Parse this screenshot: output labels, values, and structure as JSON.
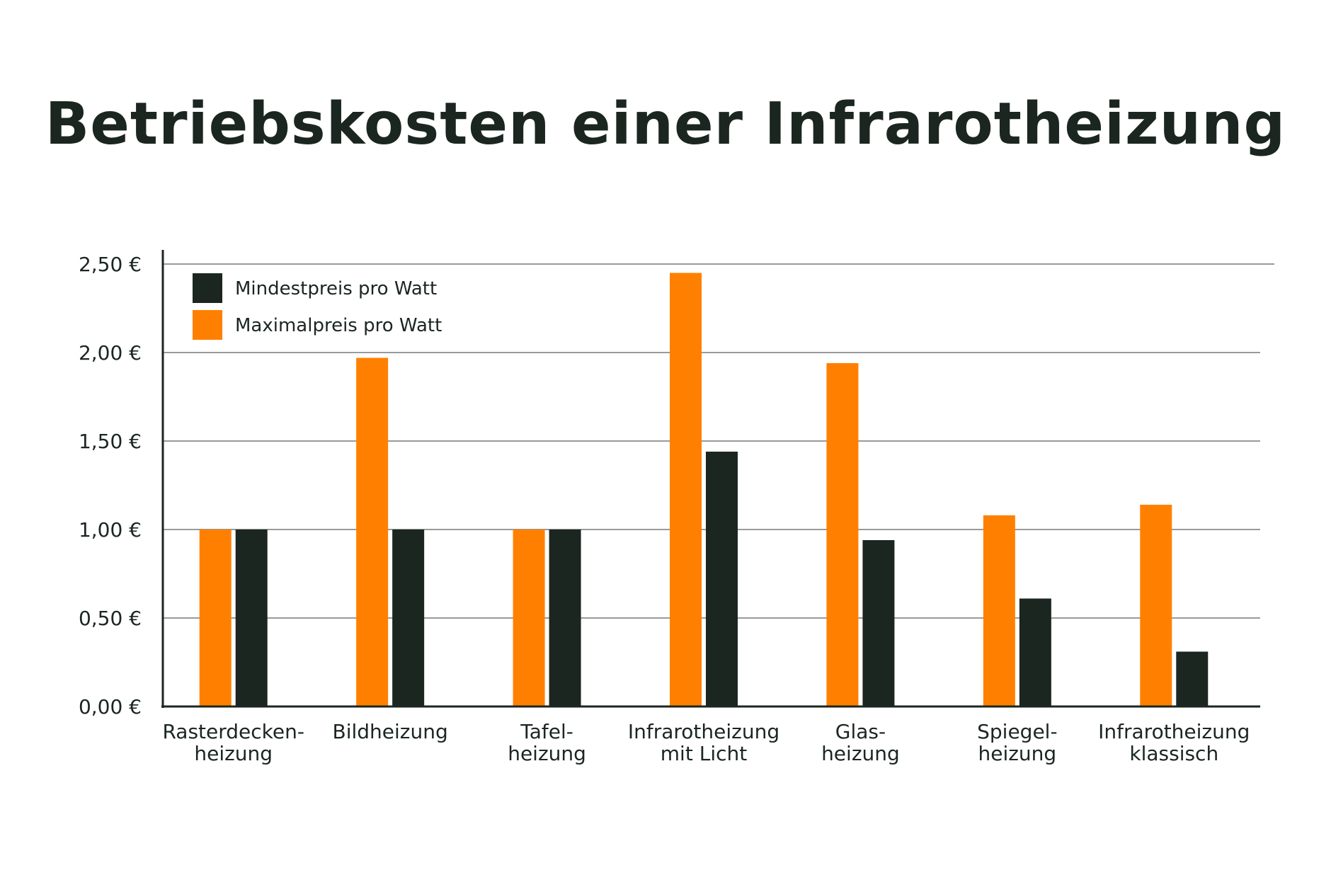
{
  "chart_data": {
    "type": "bar",
    "title": "Betriebskosten einer Infrarotheizung",
    "xlabel": "",
    "ylabel": "",
    "ylim": [
      0,
      2.5
    ],
    "y_ticks": [
      "0,00 €",
      "0,50 €",
      "1,00 €",
      "1,50 €",
      "2,00 €",
      "2,50 €"
    ],
    "y_tick_values": [
      0,
      0.5,
      1.0,
      1.5,
      2.0,
      2.5
    ],
    "grid": true,
    "legend_position": "top-left",
    "categories": [
      [
        "Rasterdecken-",
        "heizung"
      ],
      [
        "Bildheizung"
      ],
      [
        "Tafel-",
        "heizung"
      ],
      [
        "Infrarotheizung",
        "mit Licht"
      ],
      [
        "Glas-",
        "heizung"
      ],
      [
        "Spiegel-",
        "heizung"
      ],
      [
        "Infrarotheizung",
        "klassisch"
      ]
    ],
    "series": [
      {
        "name": "Maximalpreis pro Watt",
        "color": "#ff8000",
        "values": [
          1.0,
          1.97,
          1.0,
          2.45,
          1.94,
          1.08,
          1.14
        ]
      },
      {
        "name": "Mindestpreis pro Watt",
        "color": "#1b2620",
        "values": [
          1.0,
          1.0,
          1.0,
          1.44,
          0.94,
          0.61,
          0.31
        ]
      }
    ],
    "legend_order": [
      1,
      0
    ]
  }
}
